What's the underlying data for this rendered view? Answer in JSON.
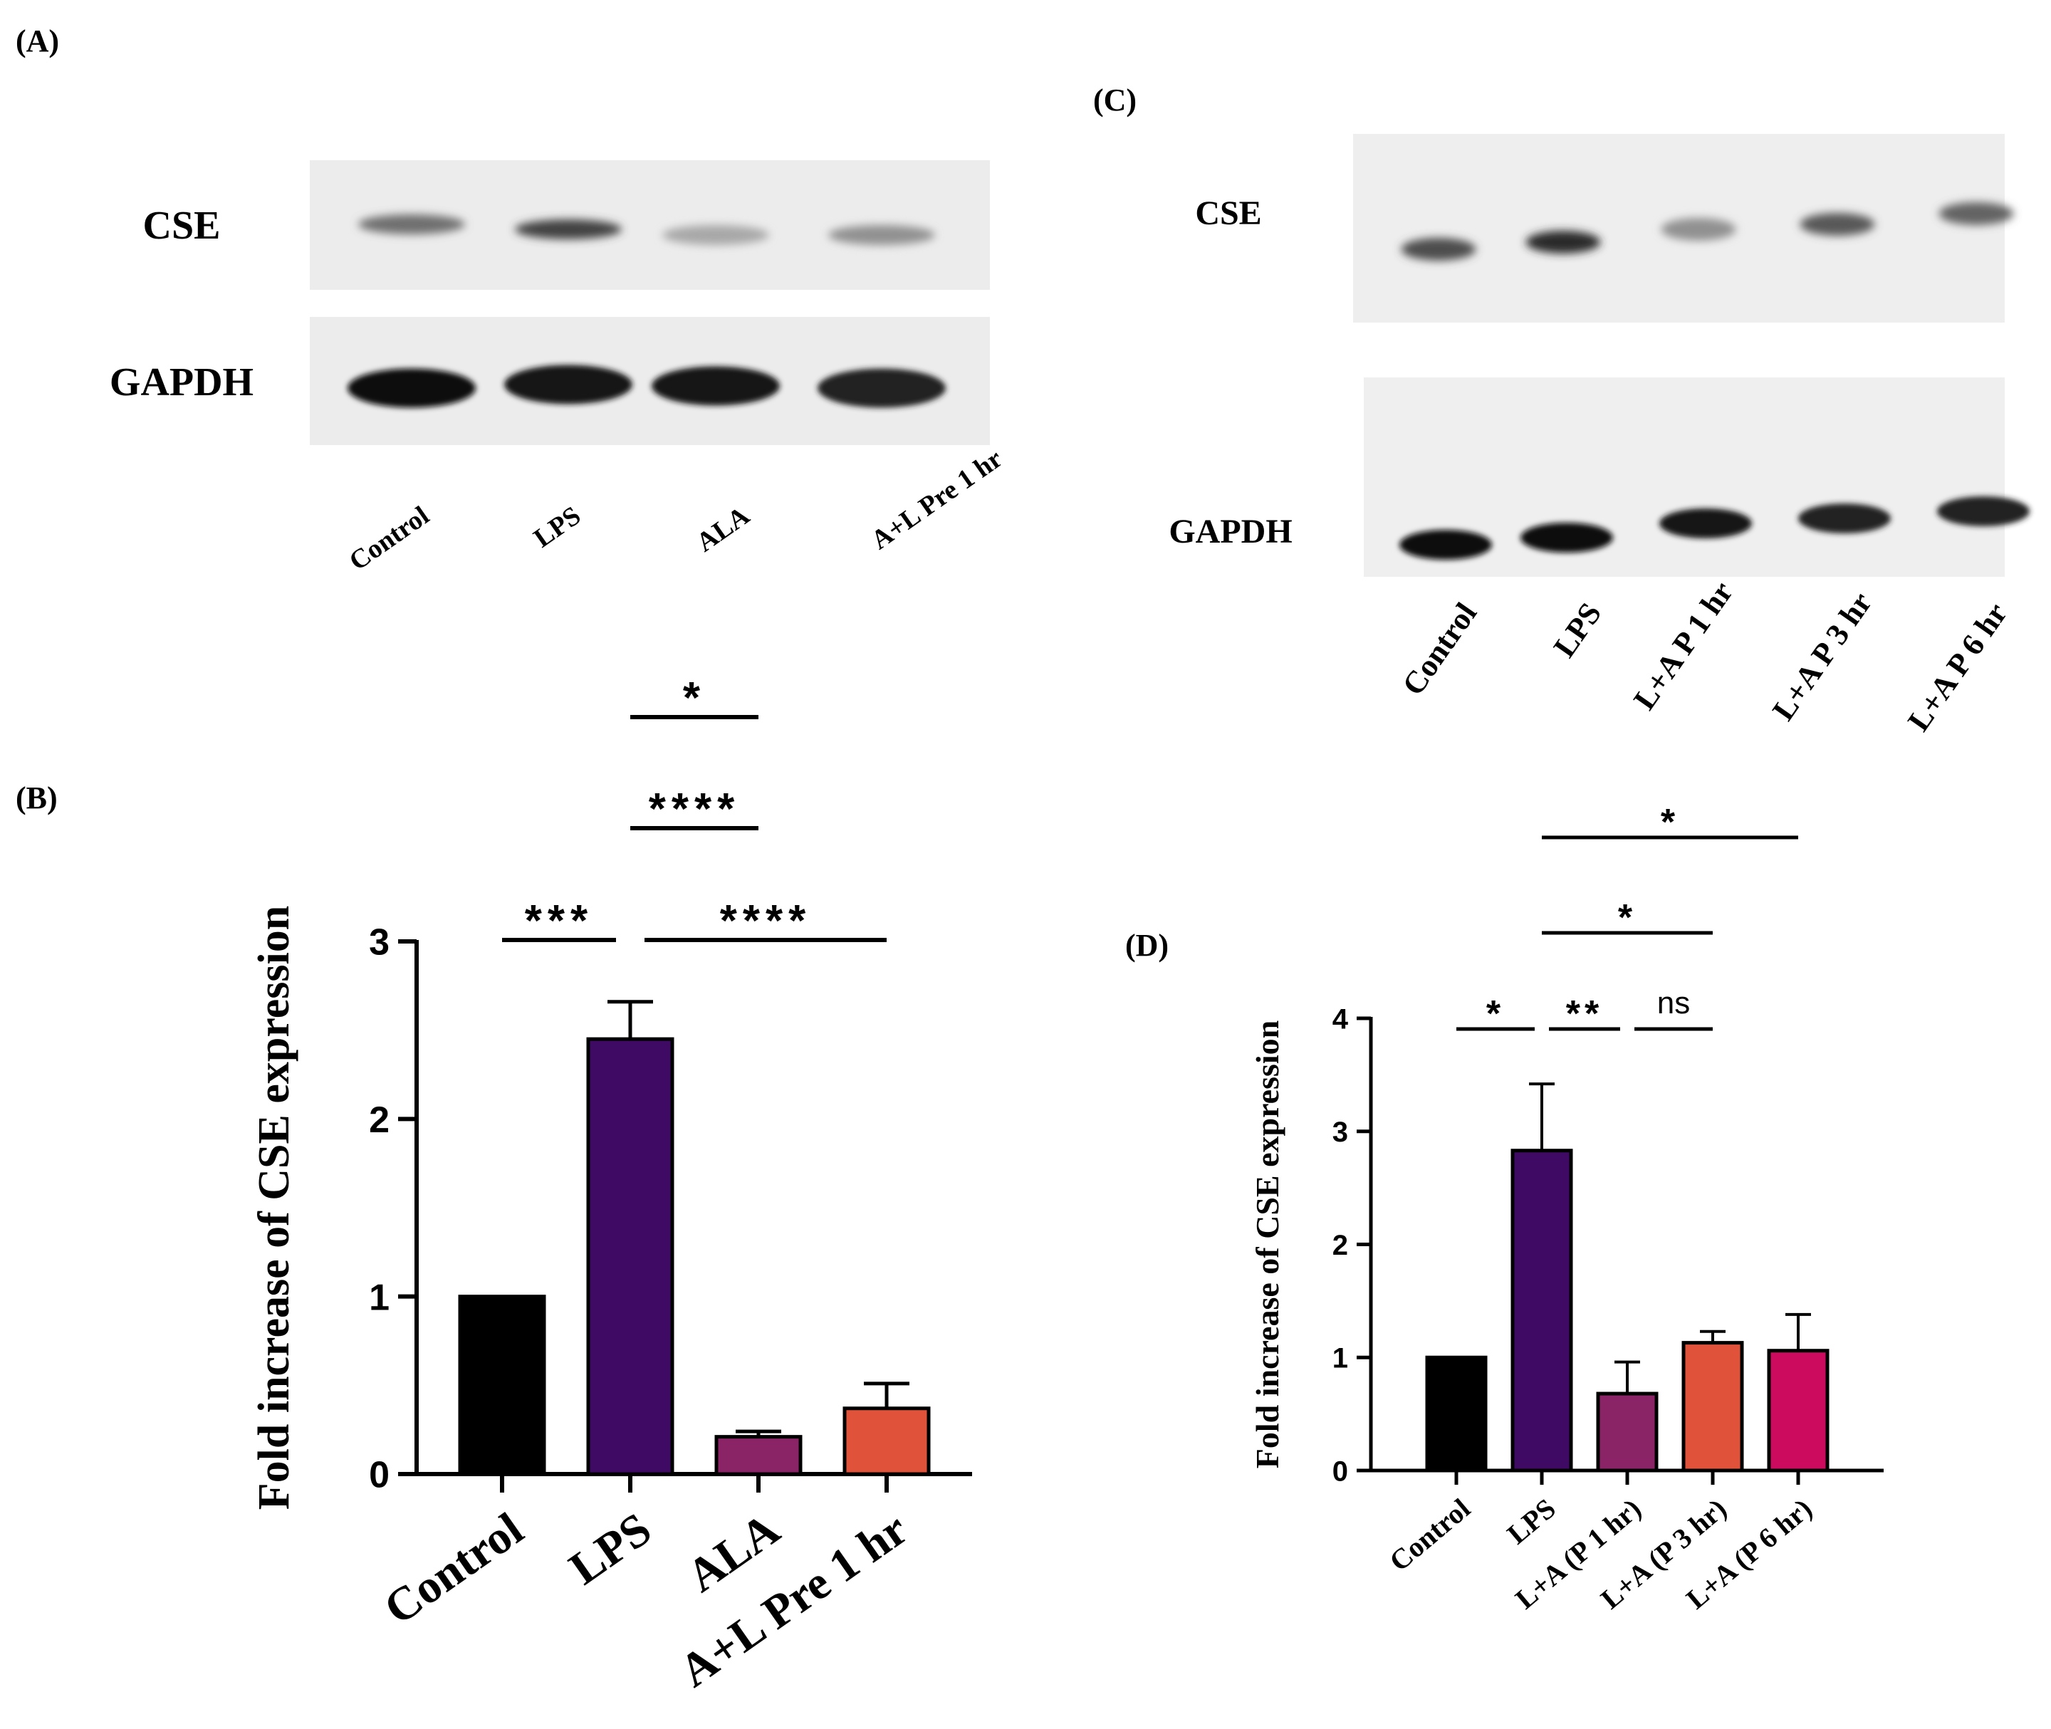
{
  "panels": {
    "A": {
      "label": "(A)",
      "rows": [
        {
          "label": "CSE",
          "intensities": [
            0.55,
            0.75,
            0.3,
            0.4
          ]
        },
        {
          "label": "GAPDH",
          "intensities": [
            1.0,
            0.95,
            0.95,
            0.9
          ]
        }
      ],
      "lanes": [
        "Control",
        "LPS",
        "ALA",
        "A+L Pre 1 hr"
      ]
    },
    "C": {
      "label": "(C)",
      "rows": [
        {
          "label": "CSE",
          "intensities": [
            0.7,
            0.85,
            0.4,
            0.65,
            0.6
          ]
        },
        {
          "label": "GAPDH",
          "intensities": [
            1.0,
            1.0,
            0.95,
            0.9,
            0.9
          ]
        }
      ],
      "lanes": [
        "Control",
        "LPS",
        "L+A P 1 hr",
        "L+A P 3 hr",
        "L+A P 6 hr"
      ]
    },
    "B": {
      "label": "(B)"
    },
    "D": {
      "label": "(D)"
    }
  },
  "chart_data": [
    {
      "panel": "B",
      "type": "bar",
      "categories": [
        "Control",
        "LPS",
        "ALA",
        "A+L Pre 1 hr"
      ],
      "values": [
        1.0,
        2.45,
        0.21,
        0.37
      ],
      "errors": [
        0,
        0.21,
        0.03,
        0.14
      ],
      "colors": [
        "#000000",
        "#3e0a63",
        "#8a2467",
        "#e0533a"
      ],
      "ylabel": "Fold increase of CSE expression",
      "ylim": [
        0,
        3
      ],
      "yticks": [
        0,
        1,
        2,
        3
      ],
      "significance": [
        {
          "from": 1,
          "to": 2,
          "label": "*"
        },
        {
          "from": 1,
          "to": 2,
          "label": "****"
        },
        {
          "from": 0,
          "to": 1,
          "label": "***"
        },
        {
          "from": 1,
          "to": 3,
          "label": "****"
        }
      ]
    },
    {
      "panel": "D",
      "type": "bar",
      "categories": [
        "Control",
        "LPS",
        "L+A (P 1 hr)",
        "L+A (P 3 hr)",
        "L+A (P 6 hr)"
      ],
      "values": [
        1.0,
        2.83,
        0.68,
        1.13,
        1.06
      ],
      "errors": [
        0,
        0.59,
        0.28,
        0.1,
        0.32
      ],
      "colors": [
        "#000000",
        "#3e0a63",
        "#8a2467",
        "#e0533a",
        "#cc0a5e"
      ],
      "ylabel": "Fold increase of CSE expression",
      "ylim": [
        0,
        4
      ],
      "yticks": [
        0,
        1,
        2,
        3,
        4
      ],
      "significance": [
        {
          "from": 1,
          "to": 4,
          "label": "*"
        },
        {
          "from": 1,
          "to": 3,
          "label": "*"
        },
        {
          "from": 0,
          "to": 1,
          "label": "*"
        },
        {
          "from": 1,
          "to": 2,
          "label": "**"
        },
        {
          "from": 2,
          "to": 3,
          "label": "ns"
        }
      ]
    }
  ]
}
